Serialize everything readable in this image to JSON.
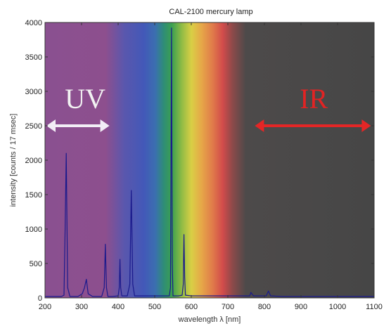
{
  "chart_data": {
    "type": "line",
    "title": "CAL-2100 mercury lamp",
    "xlabel": "wavelength λ [nm]",
    "ylabel": "intensity [counts / 17 msec]",
    "xlim": [
      200,
      1100
    ],
    "ylim": [
      0,
      4000
    ],
    "xticks": [
      200,
      300,
      400,
      500,
      600,
      700,
      800,
      900,
      1000,
      1100
    ],
    "yticks": [
      0,
      500,
      1000,
      1500,
      2000,
      2500,
      3000,
      3500,
      4000
    ],
    "grid": false,
    "series": [
      {
        "color": "#1a1a8c",
        "x": [
          200,
          245,
          252,
          255,
          258,
          262,
          268,
          290,
          302,
          308,
          313,
          318,
          330,
          355,
          362,
          365,
          368,
          372,
          385,
          400,
          403,
          405,
          407,
          410,
          425,
          432,
          436,
          440,
          445,
          470,
          495,
          530,
          540,
          543,
          544,
          546,
          548,
          550,
          565,
          575,
          578,
          579,
          580,
          582,
          584,
          600,
          700,
          750,
          760,
          763,
          770,
          805,
          811,
          817,
          850,
          900,
          1000,
          1100
        ],
        "y": [
          20,
          20,
          40,
          1000,
          2100,
          150,
          20,
          20,
          60,
          150,
          270,
          60,
          20,
          20,
          150,
          780,
          150,
          20,
          20,
          30,
          150,
          560,
          150,
          30,
          30,
          200,
          1560,
          200,
          30,
          30,
          30,
          30,
          30,
          150,
          1300,
          3920,
          500,
          30,
          30,
          40,
          200,
          600,
          920,
          300,
          40,
          30,
          30,
          30,
          30,
          80,
          30,
          30,
          100,
          30,
          20,
          20,
          20,
          20
        ]
      }
    ],
    "annotations": [
      {
        "text": "UV",
        "x": 310,
        "y": 2900,
        "color": "#f2f2f2",
        "arrow": "double",
        "arrow_from": 200,
        "arrow_to": 380,
        "arrow_y": 2500,
        "arrow_color": "#f2eef6"
      },
      {
        "text": "IR",
        "x": 935,
        "y": 2900,
        "color": "#e32323",
        "arrow": "double",
        "arrow_from": 770,
        "arrow_to": 1095,
        "arrow_y": 2500,
        "arrow_color": "#e42626"
      }
    ],
    "background_bands": [
      {
        "from": 200,
        "to": 400,
        "color": "#8c4f8f"
      },
      {
        "from": 420,
        "to": 500,
        "color": "#4b59b4"
      },
      {
        "from": 515,
        "to": 535,
        "color": "#2b8a6a"
      },
      {
        "from": 550,
        "to": 600,
        "color": "#c8c24a"
      },
      {
        "from": 625,
        "to": 690,
        "color": "#d45050"
      },
      {
        "from": 760,
        "to": 1100,
        "color": "#4a4a4a"
      }
    ]
  }
}
